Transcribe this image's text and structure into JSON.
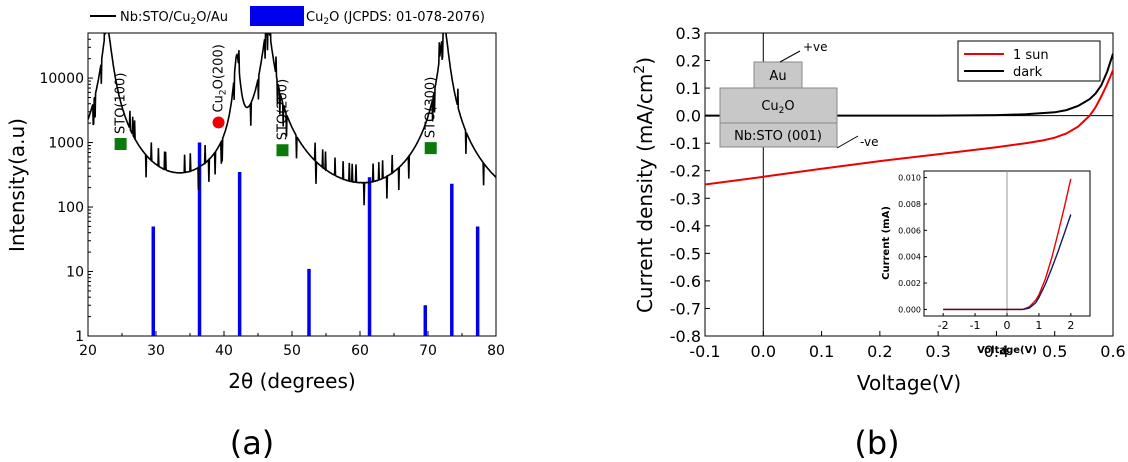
{
  "chart_data": [
    {
      "panel_label": "(a)",
      "type": "line",
      "xlabel": "2θ (degrees)",
      "ylabel": "Intensity(a.u)",
      "xlim": [
        20,
        80
      ],
      "ylim": [
        1,
        50000
      ],
      "yscale": "log",
      "x_ticks": [
        20,
        30,
        40,
        50,
        60,
        70,
        80
      ],
      "y_ticks": [
        {
          "value": 1,
          "label": "1"
        },
        {
          "value": 10,
          "label": "10"
        },
        {
          "value": 100,
          "label": "100"
        },
        {
          "value": 1000,
          "label": "1000"
        },
        {
          "value": 10000,
          "label": "10000"
        }
      ],
      "legend": {
        "placement": "top",
        "entries": [
          {
            "label": "Nb:STO/Cu2O/Au",
            "color": "#000000",
            "kind": "line"
          },
          {
            "label": "Cu2O (JCPDS: 01-078-2076)",
            "color": "#0000ee",
            "kind": "box"
          }
        ]
      },
      "series": [
        {
          "name": "Nb:STO/Cu2O/Au",
          "color": "#000000",
          "background": 3.5,
          "peaks": [
            {
              "center": 22.8,
              "height": 60000,
              "width": 0.55
            },
            {
              "center": 36.5,
              "height": 6,
              "width": 0.4
            },
            {
              "center": 41.9,
              "height": 22000,
              "width": 0.35
            },
            {
              "center": 46.4,
              "height": 60000,
              "width": 0.6
            },
            {
              "center": 72.4,
              "height": 60000,
              "width": 0.5
            }
          ]
        }
      ],
      "reference_sticks": {
        "name": "Cu2O (JCPDS: 01-078-2076)",
        "color": "#0000ee",
        "x": [
          29.6,
          36.4,
          42.3,
          52.5,
          61.4,
          69.6,
          73.5,
          77.3
        ],
        "y": [
          50,
          1000,
          350,
          11,
          290,
          3,
          230,
          50
        ]
      },
      "markers": [
        {
          "label": "STO(100)",
          "x": 24.8,
          "y": 950,
          "shape": "square",
          "color": "#0b7a0b"
        },
        {
          "label": "Cu2O(200)",
          "x": 39.2,
          "y": 2050,
          "shape": "circle",
          "color": "#ee0000"
        },
        {
          "label": "STO(200)",
          "x": 48.6,
          "y": 760,
          "shape": "square",
          "color": "#0b7a0b"
        },
        {
          "label": "STO(300)",
          "x": 70.4,
          "y": 820,
          "shape": "square",
          "color": "#0b7a0b"
        }
      ]
    },
    {
      "panel_label": "(b)",
      "type": "line",
      "xlabel": "Voltage(V)",
      "ylabel": "Current density (mA/cm2)",
      "xlim": [
        -0.1,
        0.6
      ],
      "ylim": [
        -0.8,
        0.3
      ],
      "x_ticks": [
        -0.1,
        0.0,
        0.1,
        0.2,
        0.3,
        0.4,
        0.5,
        0.6
      ],
      "y_ticks": [
        0.3,
        0.2,
        0.1,
        0.0,
        -0.1,
        -0.2,
        -0.3,
        -0.4,
        -0.5,
        -0.6,
        -0.7,
        -0.8
      ],
      "legend": {
        "placement": "top-right",
        "entries": [
          {
            "label": "1 sun",
            "color": "#ee0000"
          },
          {
            "label": "dark",
            "color": "#000000"
          }
        ]
      },
      "series": [
        {
          "name": "1 sun",
          "color": "#ee0000",
          "x": [
            -0.1,
            0.0,
            0.1,
            0.2,
            0.3,
            0.4,
            0.45,
            0.48,
            0.5,
            0.52,
            0.54,
            0.55,
            0.56,
            0.57,
            0.58,
            0.59,
            0.6
          ],
          "y": [
            -0.25,
            -0.222,
            -0.193,
            -0.165,
            -0.14,
            -0.115,
            -0.1,
            -0.09,
            -0.08,
            -0.065,
            -0.04,
            -0.02,
            0.0,
            0.03,
            0.07,
            0.115,
            0.165
          ]
        },
        {
          "name": "dark",
          "color": "#000000",
          "x": [
            -0.1,
            0.0,
            0.1,
            0.2,
            0.3,
            0.4,
            0.45,
            0.5,
            0.52,
            0.54,
            0.56,
            0.57,
            0.58,
            0.59,
            0.6
          ],
          "y": [
            0.0,
            0.0,
            0.0,
            0.0,
            0.0,
            0.002,
            0.005,
            0.012,
            0.02,
            0.035,
            0.06,
            0.08,
            0.11,
            0.16,
            0.225
          ]
        }
      ],
      "device_schematic": {
        "layers": [
          "Au",
          "Cu2O",
          "Nb:STO (001)"
        ],
        "positive_label": "+ve",
        "negative_label": "-ve"
      },
      "inset": {
        "type": "line",
        "xlabel": "Voltage(V)",
        "ylabel": "Current (mA)",
        "xlim": [
          -2.6,
          2.6
        ],
        "ylim": [
          -0.0005,
          0.0105
        ],
        "x_ticks": [
          -2,
          -1,
          0,
          1,
          2
        ],
        "y_ticks": [
          0.0,
          0.002,
          0.004,
          0.006,
          0.008,
          0.01
        ],
        "y_tick_labels": [
          "0.000",
          "0.002",
          "0.004",
          "0.006",
          "0.008",
          "0.010"
        ],
        "series": [
          {
            "name": "1 sun",
            "color": "#ee0000",
            "x": [
              -2.0,
              -1.0,
              0.0,
              0.5,
              0.7,
              0.9,
              1.0,
              1.2,
              1.4,
              1.6,
              1.8,
              2.0
            ],
            "y": [
              0.0,
              0.0,
              0.0,
              0.0,
              0.0002,
              0.0007,
              0.0011,
              0.0023,
              0.0039,
              0.0058,
              0.0078,
              0.0099
            ]
          },
          {
            "name": "dark",
            "color": "#1a1a60",
            "x": [
              -2.0,
              -1.0,
              0.0,
              0.5,
              0.7,
              0.9,
              1.0,
              1.2,
              1.4,
              1.6,
              1.8,
              2.0
            ],
            "y": [
              0.0,
              0.0,
              0.0,
              0.0,
              0.0001,
              0.0005,
              0.0009,
              0.0019,
              0.0031,
              0.0044,
              0.0058,
              0.0072
            ]
          }
        ]
      }
    }
  ]
}
